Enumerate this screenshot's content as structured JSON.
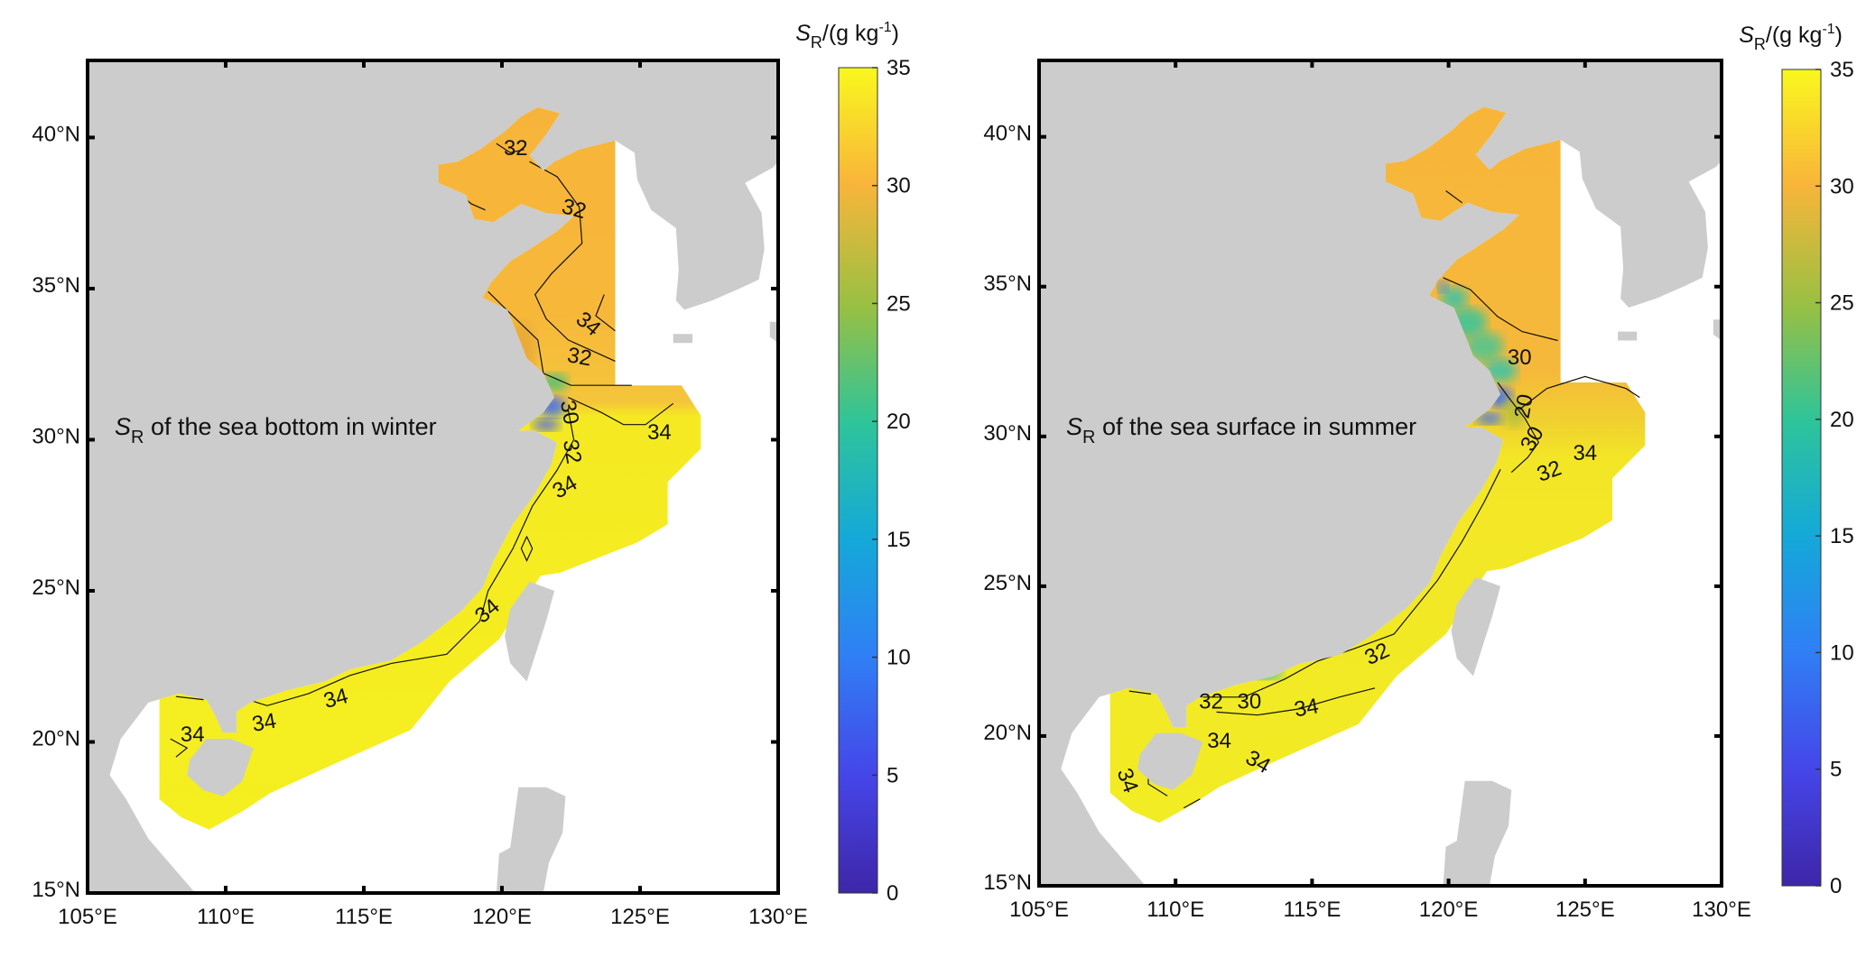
{
  "axes": {
    "lon_ticks": [
      "105°E",
      "110°E",
      "115°E",
      "120°E",
      "125°E",
      "130°E"
    ],
    "lat_ticks": [
      "15°N",
      "20°N",
      "25°N",
      "30°N",
      "35°N",
      "40°N"
    ]
  },
  "colorbar": {
    "ticks": [
      "0",
      "5",
      "10",
      "15",
      "20",
      "25",
      "30",
      "35"
    ],
    "range": [
      0,
      35
    ],
    "colormap": "parula",
    "label": {
      "symbol": "S",
      "sub": "R",
      "unit_pre": "/(g kg",
      "sup": "-1",
      "unit_post": ")"
    }
  },
  "colors": {
    "land": "#cccccc",
    "sea_no_data": "#ffffff",
    "high_salinity": "#f5ef1f",
    "mid_salinity": "#f7b83a",
    "low_salinity": "#3f6ef0",
    "contour": "#111111"
  },
  "panels": [
    {
      "title": {
        "symbol": "S",
        "sub": "R",
        "text": " of the sea bottom in winter"
      },
      "contour_labels": [
        "32",
        "32",
        "34",
        "32",
        "30",
        "34",
        "32",
        "34",
        "34",
        "34",
        "34",
        "34"
      ]
    },
    {
      "title": {
        "symbol": "S",
        "sub": "R",
        "text": " of the sea surface in summer"
      },
      "contour_labels": [
        "30",
        "20",
        "30",
        "32",
        "34",
        "32",
        "34",
        "32",
        "30",
        "34",
        "34",
        "34"
      ]
    }
  ]
}
